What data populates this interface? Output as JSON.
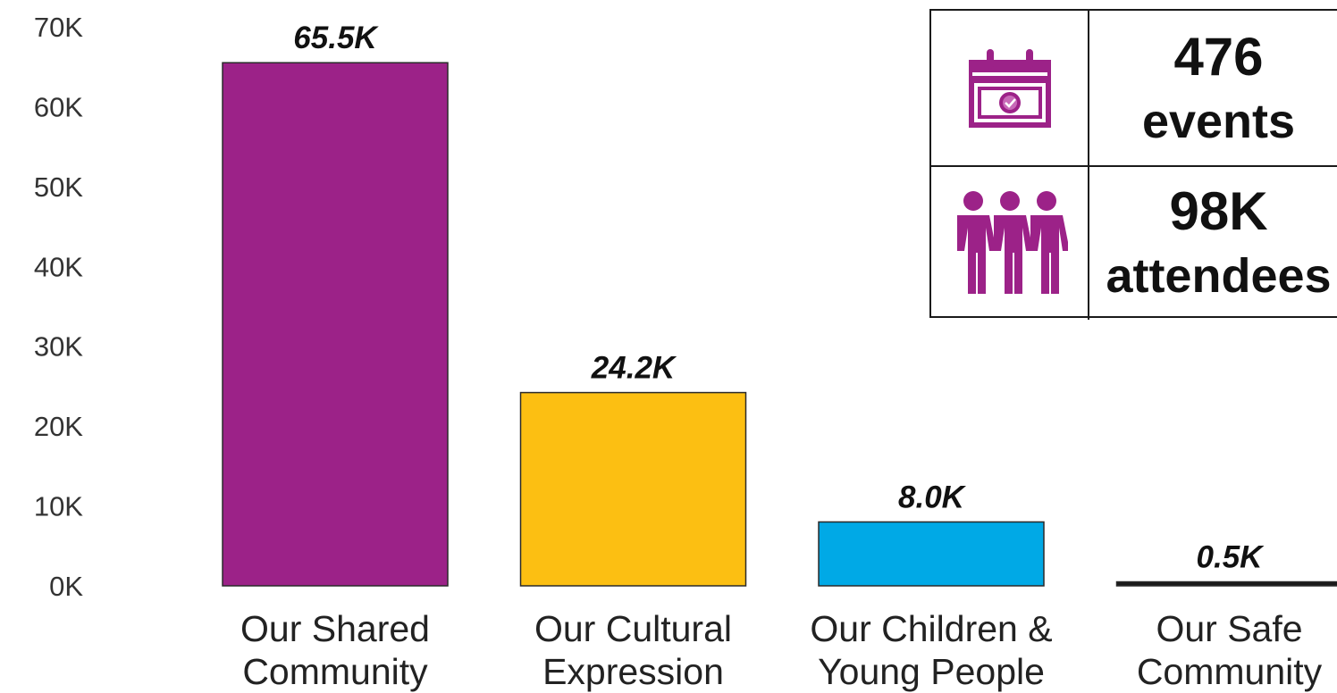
{
  "chart_data": {
    "type": "bar",
    "title": "",
    "xlabel": "",
    "ylabel": "",
    "categories": [
      [
        "Our Shared",
        "Community"
      ],
      [
        "Our Cultural",
        "Expression"
      ],
      [
        "Our Children &",
        "Young People"
      ],
      [
        "Our Safe",
        "Community"
      ]
    ],
    "values": [
      65.5,
      24.2,
      8.0,
      0.5
    ],
    "value_labels": [
      "65.5K",
      "24.2K",
      "8.0K",
      "0.5K"
    ],
    "colors": [
      "#9c2288",
      "#fcbf12",
      "#00a9e6",
      "#1a1a1a"
    ],
    "ylim": [
      0,
      70
    ],
    "yticks": [
      0,
      10,
      20,
      30,
      40,
      50,
      60,
      70
    ],
    "ytick_labels": [
      "0K",
      "10K",
      "20K",
      "30K",
      "40K",
      "50K",
      "60K",
      "70K"
    ],
    "grid": false,
    "legend": "none"
  },
  "stats": {
    "events": {
      "value": "476",
      "label": "events",
      "icon": "calendar-icon"
    },
    "attendees": {
      "value": "98K",
      "label": "attendees",
      "icon": "people-icon"
    },
    "icon_color": "#9c2288"
  }
}
